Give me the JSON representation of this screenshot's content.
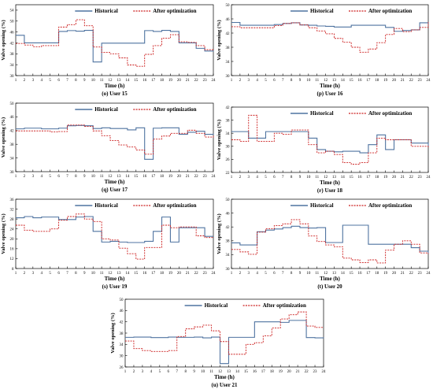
{
  "page": {
    "background": "#ffffff"
  },
  "colors": {
    "historical": "#4f73a0",
    "optimized": "#cc1f1f",
    "axis": "#000000"
  },
  "chart_data": [
    {
      "type": "line",
      "step": true,
      "caption": "(o) User 15",
      "xlabel": "Time (h)",
      "ylabel": "Valve opening (%)",
      "ylim": [
        30,
        56
      ],
      "yticks": [
        30,
        34,
        38,
        42,
        46,
        50,
        54
      ],
      "x": [
        1,
        2,
        3,
        4,
        5,
        6,
        7,
        8,
        9,
        10,
        11,
        12,
        13,
        14,
        15,
        16,
        17,
        18,
        19,
        20,
        21,
        22,
        23,
        24
      ],
      "series": [
        {
          "name": "Historical",
          "values": [
            44.8,
            42,
            42,
            42,
            42,
            46.2,
            46.5,
            46.3,
            46.6,
            35,
            41.9,
            41.9,
            41.9,
            41.9,
            41.9,
            46.5,
            46.2,
            46.6,
            46.2,
            42,
            42,
            40,
            39,
            38.8
          ]
        },
        {
          "name": "After optimization",
          "values": [
            41.8,
            41.2,
            40.6,
            41,
            41,
            47.8,
            48.7,
            50.5,
            48.3,
            40.5,
            38.5,
            38,
            36.5,
            33.9,
            33.4,
            37.8,
            41,
            43.7,
            45,
            42.4,
            42.2,
            41,
            39.5,
            39.5
          ]
        }
      ]
    },
    {
      "type": "line",
      "step": true,
      "caption": "(p) User 16",
      "xlabel": "Time (h)",
      "ylabel": "Valve opening (%)",
      "ylim": [
        30,
        50
      ],
      "yticks": [
        30,
        34,
        38,
        42,
        46,
        50
      ],
      "x": [
        1,
        2,
        3,
        4,
        5,
        6,
        7,
        8,
        9,
        10,
        11,
        12,
        13,
        14,
        15,
        16,
        17,
        18,
        19,
        20,
        21,
        22,
        23,
        24
      ],
      "series": [
        {
          "name": "Historical",
          "values": [
            45,
            44.2,
            44.2,
            44.2,
            44.2,
            44.4,
            44.7,
            44.9,
            44.3,
            44.2,
            44,
            43.9,
            43.7,
            43.7,
            44.2,
            44.2,
            44.2,
            44.2,
            43.6,
            42.5,
            42.7,
            42.9,
            44.9,
            44.7
          ]
        },
        {
          "name": "After optimization",
          "values": [
            43.8,
            43.5,
            43.5,
            43.5,
            43.5,
            44.1,
            44.7,
            44.9,
            44.3,
            43.5,
            42.6,
            41.8,
            40.5,
            39.4,
            38,
            36.6,
            37.5,
            39.3,
            41.6,
            43.3,
            42.4,
            42.9,
            43.6,
            45.1
          ]
        }
      ]
    },
    {
      "type": "line",
      "step": true,
      "caption": "(q) User 17",
      "xlabel": "Time (h)",
      "ylabel": "Valve opening (%)",
      "ylim": [
        30,
        50
      ],
      "yticks": [
        30,
        34,
        38,
        42,
        46,
        50
      ],
      "x": [
        1,
        2,
        3,
        4,
        5,
        6,
        7,
        8,
        9,
        10,
        11,
        12,
        13,
        14,
        15,
        16,
        17,
        18,
        19,
        20,
        21,
        22,
        23,
        24
      ],
      "series": [
        {
          "name": "Historical",
          "values": [
            42.5,
            42.7,
            42.7,
            42.5,
            42.5,
            42.7,
            43.4,
            43.5,
            43.4,
            42.6,
            42.8,
            42.6,
            42.6,
            42.2,
            42.8,
            33.6,
            42.7,
            42.8,
            42.8,
            40.9,
            41.5,
            41.8,
            40.9,
            41.1
          ]
        },
        {
          "name": "After optimization",
          "values": [
            41.9,
            41.9,
            41.9,
            41.9,
            41.6,
            41.7,
            43.6,
            43.6,
            43.2,
            41.9,
            40.5,
            39.1,
            37.8,
            37.2,
            36.3,
            35.1,
            39.5,
            40.4,
            41.2,
            41.2,
            42.1,
            41.2,
            40.1,
            40.6
          ]
        }
      ]
    },
    {
      "type": "line",
      "step": true,
      "caption": "(r) User 18",
      "xlabel": "Time (h)",
      "ylabel": "Valve opening (%)",
      "ylim": [
        22,
        42
      ],
      "yticks": [
        22,
        26,
        30,
        34,
        38,
        42
      ],
      "x": [
        1,
        2,
        3,
        4,
        5,
        6,
        7,
        8,
        9,
        10,
        11,
        12,
        13,
        14,
        15,
        16,
        17,
        18,
        19,
        20,
        21,
        22,
        23,
        24
      ],
      "series": [
        {
          "name": "Historical",
          "values": [
            34.5,
            34.5,
            32.5,
            32.5,
            34.5,
            34.5,
            34.5,
            34.5,
            34.5,
            32.5,
            29,
            28.5,
            28.3,
            28.5,
            28.5,
            28,
            30.5,
            33.5,
            29,
            32,
            32,
            31,
            31,
            30
          ]
        },
        {
          "name": "After optimization",
          "values": [
            32,
            31.5,
            39.5,
            31.5,
            31.5,
            34,
            33.7,
            35,
            35,
            30.5,
            28,
            28.5,
            27.5,
            25,
            24.5,
            25,
            28,
            32.5,
            32,
            32,
            32,
            30,
            30,
            29.7
          ]
        }
      ]
    },
    {
      "type": "line",
      "step": true,
      "caption": "(s) User 19",
      "xlabel": "Time (h)",
      "ylabel": "Valve opening (%)",
      "ylim": [
        8,
        36
      ],
      "yticks": [
        8,
        12,
        16,
        20,
        24,
        28,
        32,
        36
      ],
      "x": [
        1,
        2,
        3,
        4,
        5,
        6,
        7,
        8,
        9,
        10,
        11,
        12,
        13,
        14,
        15,
        16,
        17,
        18,
        19,
        20,
        21,
        22,
        23,
        24
      ],
      "series": [
        {
          "name": "Historical",
          "values": [
            28.5,
            29,
            28.5,
            28.8,
            28.8,
            27.8,
            27.8,
            28.8,
            29,
            23,
            18.7,
            19,
            18.7,
            18.5,
            18.5,
            19,
            23,
            28.8,
            18.7,
            24.5,
            24.5,
            24.5,
            21,
            21
          ]
        },
        {
          "name": "After optimization",
          "values": [
            25.5,
            23.5,
            23,
            23,
            24,
            27.5,
            29,
            30,
            28,
            27,
            20,
            19.5,
            16.2,
            14,
            11.8,
            16.5,
            16.5,
            25.5,
            24.5,
            24.8,
            24.8,
            21.2,
            20.5,
            20.5
          ]
        }
      ]
    },
    {
      "type": "line",
      "step": true,
      "caption": "(t) User 20",
      "xlabel": "Time (h)",
      "ylabel": "Valve opening (%)",
      "ylim": [
        30,
        50
      ],
      "yticks": [
        30,
        34,
        38,
        42,
        46,
        50
      ],
      "x": [
        1,
        2,
        3,
        4,
        5,
        6,
        7,
        8,
        9,
        10,
        11,
        12,
        13,
        14,
        15,
        16,
        17,
        18,
        19,
        20,
        21,
        22,
        23,
        24
      ],
      "series": [
        {
          "name": "Historical",
          "values": [
            37.4,
            36.8,
            36.8,
            40.6,
            41.1,
            41.4,
            41.8,
            42.2,
            41.8,
            41.7,
            41.8,
            37.5,
            37.5,
            42.5,
            42.5,
            42.5,
            37,
            37,
            37,
            37,
            37,
            36,
            35,
            34.2
          ]
        },
        {
          "name": "After optimization",
          "values": [
            35.5,
            34.8,
            34.1,
            40.5,
            41.5,
            42.4,
            42.9,
            44.1,
            42.9,
            39.4,
            37.8,
            36.8,
            36.3,
            33,
            32.5,
            31.7,
            32.5,
            31.6,
            35.3,
            37,
            38,
            37,
            34.5,
            34.2
          ]
        }
      ]
    },
    {
      "type": "line",
      "step": true,
      "caption": "(u) User 21",
      "xlabel": "Time (h)",
      "ylabel": "Valve opening (%)",
      "ylim": [
        26,
        50
      ],
      "yticks": [
        26,
        30,
        34,
        38,
        42,
        46,
        50
      ],
      "x": [
        1,
        2,
        3,
        4,
        5,
        6,
        7,
        8,
        9,
        10,
        11,
        12,
        13,
        14,
        15,
        16,
        17,
        18,
        19,
        20,
        21,
        22,
        23,
        24
      ],
      "series": [
        {
          "name": "Historical",
          "values": [
            36.5,
            36.6,
            36.6,
            36.4,
            36.4,
            36.6,
            36.5,
            36.5,
            36.6,
            36.3,
            36.6,
            27.2,
            36.5,
            36.5,
            36.5,
            42,
            42,
            42,
            41.8,
            42.5,
            42.5,
            36.4,
            36.3,
            36.5
          ]
        },
        {
          "name": "After optimization",
          "values": [
            35.2,
            32.5,
            31.8,
            31.5,
            31.5,
            31.8,
            36.8,
            39.5,
            40.2,
            40.8,
            38.8,
            35,
            30.5,
            30.5,
            34,
            34.6,
            37,
            39.8,
            43,
            44.5,
            45.5,
            40.5,
            40,
            40
          ]
        }
      ]
    }
  ]
}
